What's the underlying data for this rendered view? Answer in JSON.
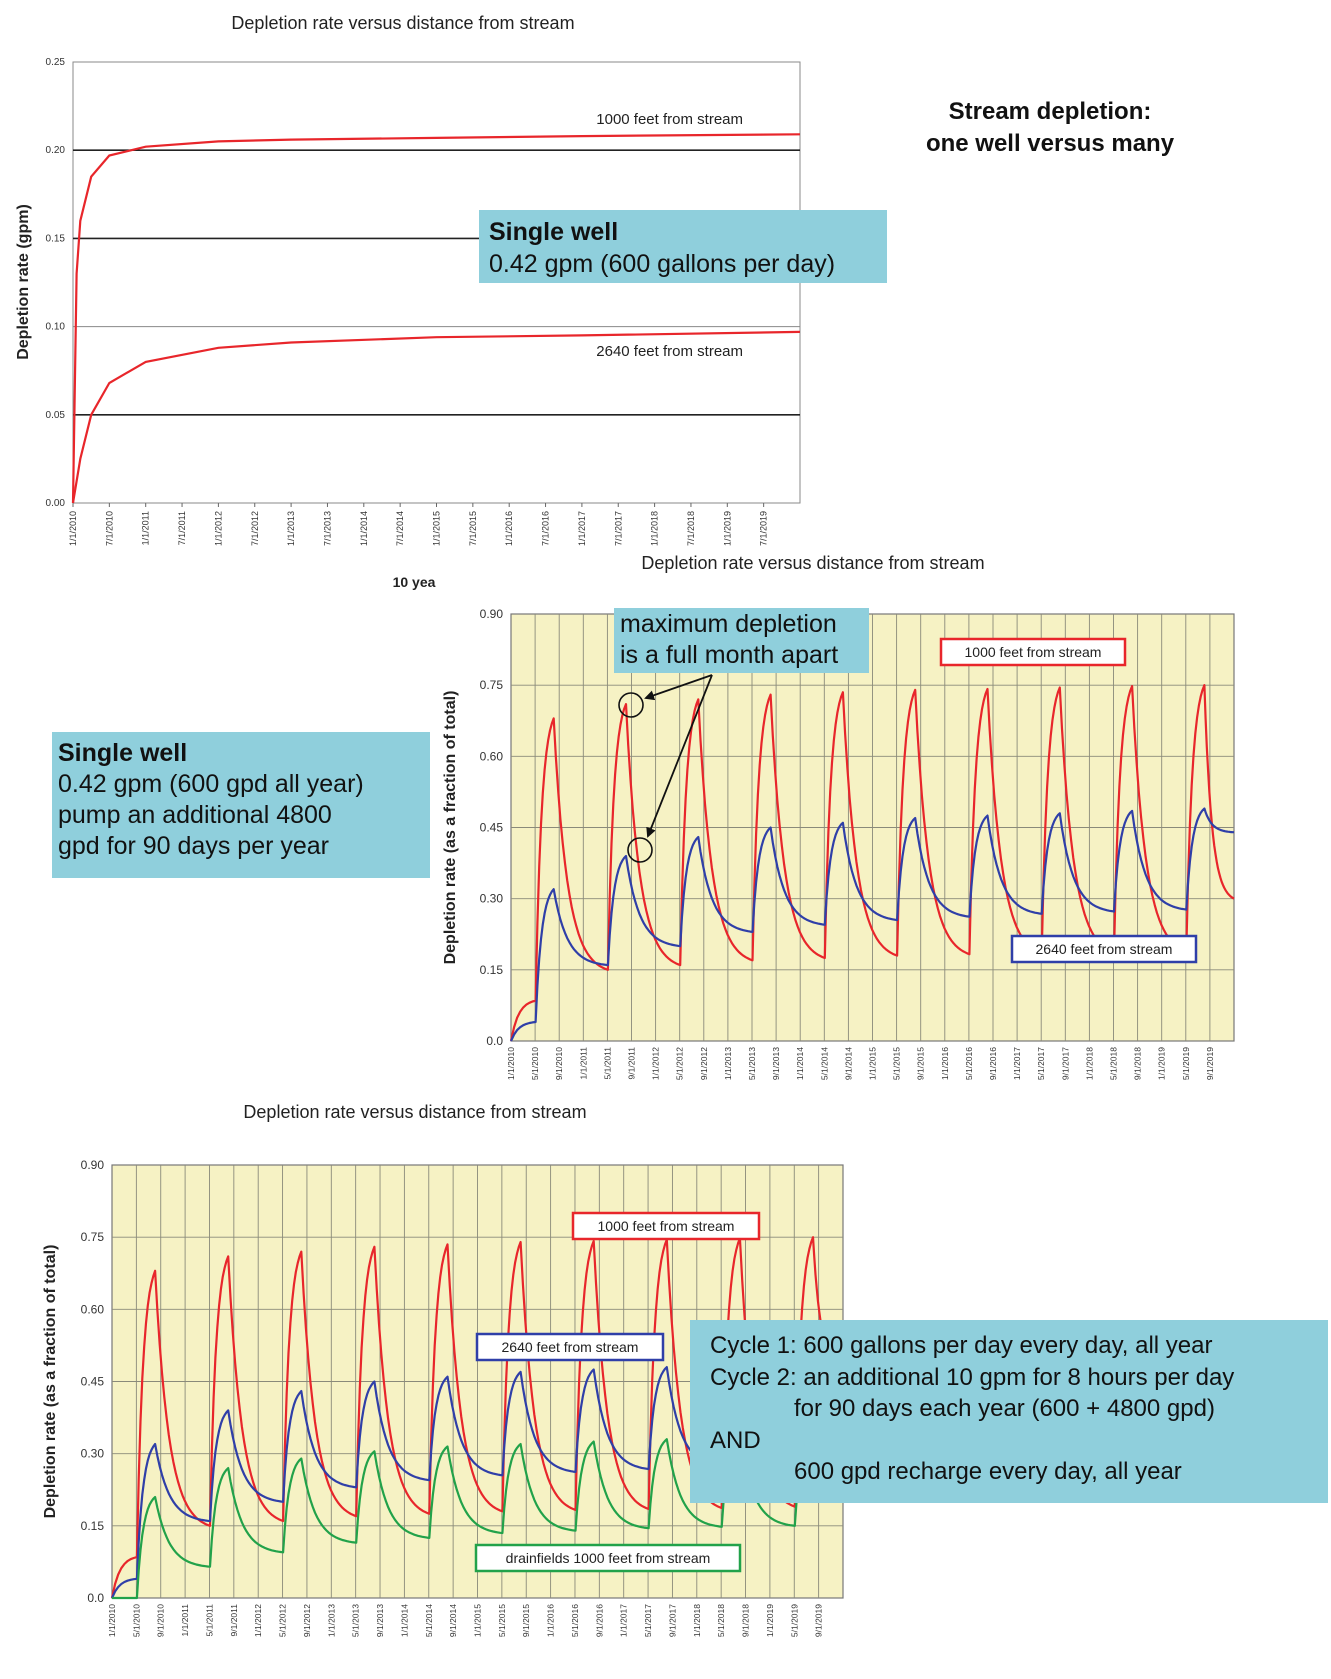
{
  "heading": {
    "line1": "Stream depletion:",
    "line2": "one well versus many"
  },
  "callouts": {
    "top": {
      "title": "Single well",
      "line1": "0.42 gpm (600 gallons per day)"
    },
    "middle": {
      "title": "Single well",
      "line1": "0.42 gpm (600 gpd all year)",
      "line2": "pump an additional 4800",
      "line3": "gpd for 90 days per year"
    },
    "arrow_note": {
      "line1": "maximum depletion",
      "line2": "is a full month apart"
    },
    "bottom": {
      "line1": "Cycle 1:  600 gallons per day every day, all year",
      "line2": "Cycle 2: an additional 10 gpm for 8 hours per day",
      "line3": "for 90 days each year (600 + 4800 gpd)",
      "line4": "AND",
      "line5": "600 gpd recharge every day, all year"
    }
  },
  "colors": {
    "red": "#e8262b",
    "blue": "#2f3fa8",
    "green": "#22a24a",
    "plot_bg": "#f6f2c4",
    "box": "#8fcfdc"
  },
  "chart_data": [
    {
      "type": "line",
      "title": "Depletion rate versus distance from stream",
      "ylabel": "Depletion rate (gpm)",
      "xlabel": "10 yea",
      "ylim": [
        0,
        0.25
      ],
      "yticks": [
        "0.00",
        "0.05",
        "0.10",
        "0.15",
        "0.20",
        "0.25"
      ],
      "xticks": [
        "1/1/2010",
        "7/1/2010",
        "1/1/2011",
        "7/1/2011",
        "1/1/2012",
        "7/1/2012",
        "1/1/2013",
        "7/1/2013",
        "1/1/2014",
        "7/1/2014",
        "1/1/2015",
        "7/1/2015",
        "1/1/2016",
        "7/1/2016",
        "1/1/2017",
        "7/1/2017",
        "1/1/2018",
        "7/1/2018",
        "1/1/2019",
        "7/1/2019"
      ],
      "grid": "horizontal",
      "series": [
        {
          "name": "1000 feet from stream",
          "color": "red",
          "points": [
            [
              0,
              0
            ],
            [
              0.05,
              0.13
            ],
            [
              0.1,
              0.16
            ],
            [
              0.25,
              0.185
            ],
            [
              0.5,
              0.197
            ],
            [
              1,
              0.202
            ],
            [
              2,
              0.205
            ],
            [
              3,
              0.206
            ],
            [
              5,
              0.207
            ],
            [
              7,
              0.208
            ],
            [
              10,
              0.209
            ]
          ]
        },
        {
          "name": "2640 feet from stream",
          "color": "red",
          "points": [
            [
              0,
              0
            ],
            [
              0.1,
              0.025
            ],
            [
              0.25,
              0.05
            ],
            [
              0.5,
              0.068
            ],
            [
              1,
              0.08
            ],
            [
              2,
              0.088
            ],
            [
              3,
              0.091
            ],
            [
              5,
              0.094
            ],
            [
              7,
              0.095
            ],
            [
              10,
              0.097
            ]
          ]
        }
      ]
    },
    {
      "type": "line",
      "title": "Depletion rate versus distance from stream",
      "ylabel": "Depletion rate (as a fraction of total)",
      "ylim": [
        0,
        0.9
      ],
      "yticks": [
        "0.0",
        "0.15",
        "0.30",
        "0.45",
        "0.60",
        "0.75",
        "0.90"
      ],
      "xticks": [
        "1/1/2010",
        "5/1/2010",
        "9/1/2010",
        "1/1/2011",
        "5/1/2011",
        "9/1/2011",
        "1/1/2012",
        "5/1/2012",
        "9/1/2012",
        "1/1/2013",
        "5/1/2013",
        "9/1/2013",
        "1/1/2014",
        "5/1/2014",
        "9/1/2014",
        "1/1/2015",
        "5/1/2015",
        "9/1/2015",
        "1/1/2016",
        "5/1/2016",
        "9/1/2016",
        "1/1/2017",
        "5/1/2017",
        "9/1/2017",
        "1/1/2018",
        "5/1/2018",
        "9/1/2018",
        "1/1/2019",
        "5/1/2019",
        "9/1/2019"
      ],
      "grid": "both",
      "series": [
        {
          "name": "1000 feet from stream",
          "color": "red",
          "peaks": [
            0.68,
            0.71,
            0.72,
            0.73,
            0.735,
            0.74,
            0.742,
            0.745,
            0.748,
            0.75
          ],
          "troughs": [
            0.15,
            0.16,
            0.17,
            0.175,
            0.18,
            0.183,
            0.185,
            0.187,
            0.19
          ],
          "end": 0.3
        },
        {
          "name": "2640 feet from stream",
          "color": "blue",
          "peaks": [
            0.32,
            0.39,
            0.43,
            0.45,
            0.46,
            0.47,
            0.475,
            0.48,
            0.485,
            0.49
          ],
          "troughs": [
            0.16,
            0.2,
            0.23,
            0.245,
            0.255,
            0.262,
            0.268,
            0.273,
            0.277
          ],
          "end": 0.44
        }
      ]
    },
    {
      "type": "line",
      "title": "Depletion rate versus distance from stream",
      "ylabel": "Depletion rate (as a fraction of total)",
      "ylim": [
        0,
        0.9
      ],
      "yticks": [
        "0.0",
        "0.15",
        "0.30",
        "0.45",
        "0.60",
        "0.75",
        "0.90"
      ],
      "xticks": [
        "1/1/2010",
        "5/1/2010",
        "9/1/2010",
        "1/1/2011",
        "5/1/2011",
        "9/1/2011",
        "1/1/2012",
        "5/1/2012",
        "9/1/2012",
        "1/1/2013",
        "5/1/2013",
        "9/1/2013",
        "1/1/2014",
        "5/1/2014",
        "9/1/2014",
        "1/1/2015",
        "5/1/2015",
        "9/1/2015",
        "1/1/2016",
        "5/1/2016",
        "9/1/2016",
        "1/1/2017",
        "5/1/2017",
        "9/1/2017",
        "1/1/2018",
        "5/1/2018",
        "9/1/2018",
        "1/1/2019",
        "5/1/2019",
        "9/1/2019"
      ],
      "grid": "both",
      "series": [
        {
          "name": "1000 feet from stream",
          "color": "red",
          "peaks": [
            0.68,
            0.71,
            0.72,
            0.73,
            0.735,
            0.74,
            0.742,
            0.745,
            0.748,
            0.75
          ],
          "troughs": [
            0.15,
            0.16,
            0.17,
            0.175,
            0.18,
            0.183,
            0.185,
            0.187,
            0.19
          ],
          "end": 0.48
        },
        {
          "name": "2640 feet from stream",
          "color": "blue",
          "peaks": [
            0.32,
            0.39,
            0.43,
            0.45,
            0.46,
            0.47,
            0.475,
            0.48,
            0.485,
            0.49
          ],
          "troughs": [
            0.16,
            0.2,
            0.23,
            0.245,
            0.255,
            0.262,
            0.268,
            0.273,
            0.277
          ],
          "end": 0.44
        },
        {
          "name": "drainfields 1000 feet from stream",
          "color": "green",
          "peaks": [
            0.21,
            0.27,
            0.29,
            0.305,
            0.315,
            0.32,
            0.325,
            0.33,
            0.335,
            0.34
          ],
          "troughs": [
            0.065,
            0.095,
            0.115,
            0.125,
            0.135,
            0.14,
            0.145,
            0.148,
            0.15
          ],
          "end": 0.3
        }
      ]
    }
  ]
}
